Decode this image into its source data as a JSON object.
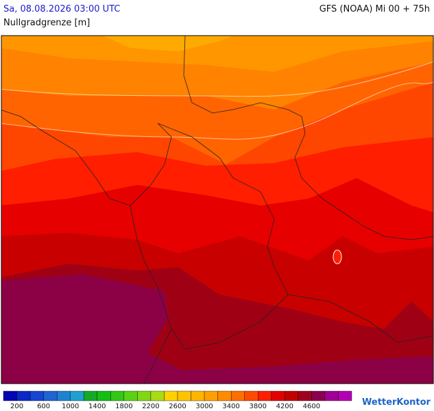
{
  "header": {
    "datetime": "Sa, 08.08.2026 03:00 UTC",
    "model_run": "GFS (NOAA) Mi 00 + 75h",
    "parameter": "Nullgradgrenze [m]"
  },
  "legend": {
    "colors": [
      "#0505b4",
      "#0a28c8",
      "#1446d2",
      "#1e64d2",
      "#1e82d2",
      "#1ea0d2",
      "#14aa28",
      "#14be14",
      "#32c814",
      "#5ad214",
      "#82d714",
      "#aadc14",
      "#ffd200",
      "#ffc300",
      "#ffb400",
      "#ffa000",
      "#ff8c00",
      "#ff6e00",
      "#ff4b00",
      "#ff1e00",
      "#e10000",
      "#c30000",
      "#a0001e",
      "#8c0050",
      "#a00096",
      "#b400b4"
    ],
    "labels": [
      "200",
      "600",
      "1000",
      "1400",
      "1800",
      "2200",
      "2600",
      "3000",
      "3400",
      "3800",
      "4200",
      "4600"
    ]
  },
  "logo": "WetterKontor"
}
